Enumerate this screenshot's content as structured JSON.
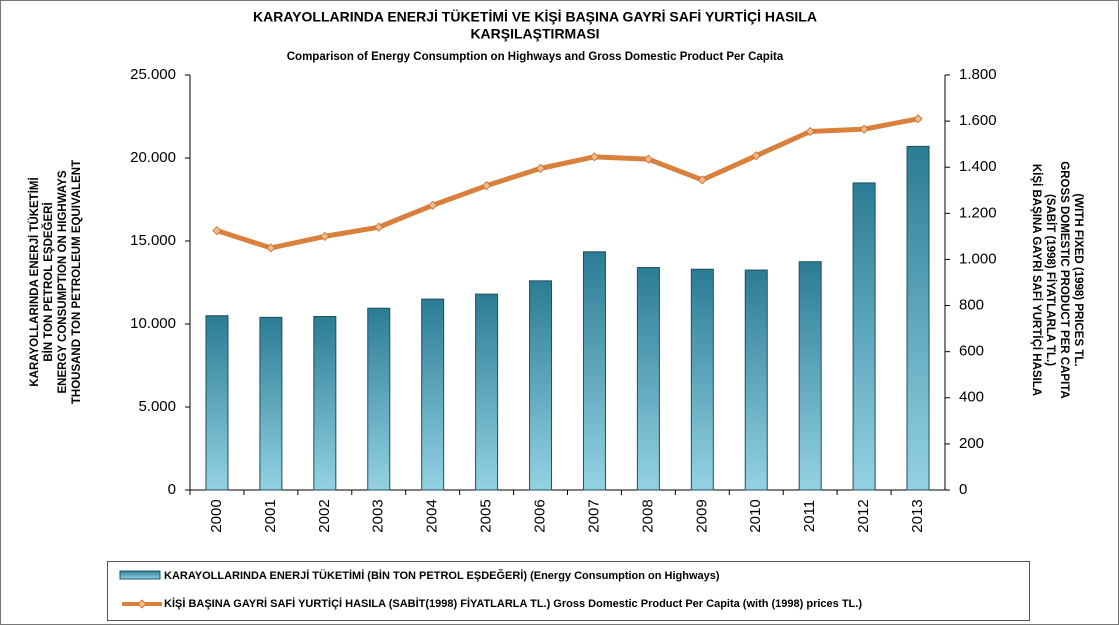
{
  "chart_data": {
    "type": "bar-line",
    "title": [
      "KARAYOLLARINDA ENERJİ TÜKETİMİ VE KİŞİ BAŞINA GAYRİ SAFİ YURTİÇİ HASILA",
      "KARŞILAŞTIRMASI"
    ],
    "subtitle": "Comparison of Energy Consumption  on Highways and Gross Domestic Product Per Capita",
    "y_label": [
      "KARAYOLLARINDA ENERJİ TÜKETİMİ",
      "BİN TON PETROL EŞDEĞERİ",
      "ENERGY CONSUMPTION ON HIGHWAYS",
      "THOUSAND TON PETROLEUM EQUIVALENT"
    ],
    "y2_label": [
      "KİŞİ BAŞINA GAYRİ SAFİ YURTİÇİ HASILA",
      "(SABİT (1998) FİYATLARLA TL.)",
      "GROSS DOMESTIC PRODUCT PER CAPITA",
      "(WITH FIXED (1998) PRICES TL."
    ],
    "categories": [
      "2000",
      "2001",
      "2002",
      "2003",
      "2004",
      "2005",
      "2006",
      "2007",
      "2008",
      "2009",
      "2010",
      "2011",
      "2012",
      "2013"
    ],
    "series": [
      {
        "name": "KARAYOLLARINDA ENERJİ TÜKETİMİ (BİN TON PETROL EŞDEĞERİ) (Energy Consumption on Highways)",
        "type": "bar",
        "color": "#2b7c95",
        "values": [
          10500,
          10400,
          10450,
          10950,
          11500,
          11800,
          12600,
          14350,
          13400,
          13300,
          13250,
          13750,
          18500,
          20700
        ]
      },
      {
        "name": "KİŞİ BAŞINA GAYRİ SAFİ YURTİÇİ HASILA (SABİT(1998) FİYATLARLA TL.) Gross Domestic Product Per Capita (with (1998) prices TL.)",
        "type": "line",
        "color": "#d9813c",
        "axis": "y2",
        "values": [
          1125,
          1050,
          1100,
          1140,
          1235,
          1320,
          1395,
          1445,
          1435,
          1345,
          1450,
          1555,
          1565,
          1610
        ]
      }
    ],
    "ylim": [
      0,
      25000
    ],
    "yticks": [
      0,
      {
        "value": 5000,
        "label": "5.000"
      },
      {
        "value": 10000,
        "label": "10.000"
      },
      {
        "value": 15000,
        "label": "15.000"
      },
      {
        "value": 20000,
        "label": "20.000"
      },
      {
        "value": 25000,
        "label": "25.000"
      }
    ],
    "y2lim": [
      0,
      1800
    ],
    "y2ticks": [
      0,
      200,
      400,
      600,
      800,
      {
        "value": 1000,
        "label": "1.000"
      },
      {
        "value": 1200,
        "label": "1.200"
      },
      {
        "value": 1400,
        "label": "1.400"
      },
      {
        "value": 1600,
        "label": "1.600"
      },
      {
        "value": 1800,
        "label": "1.800"
      }
    ],
    "grid": false
  }
}
